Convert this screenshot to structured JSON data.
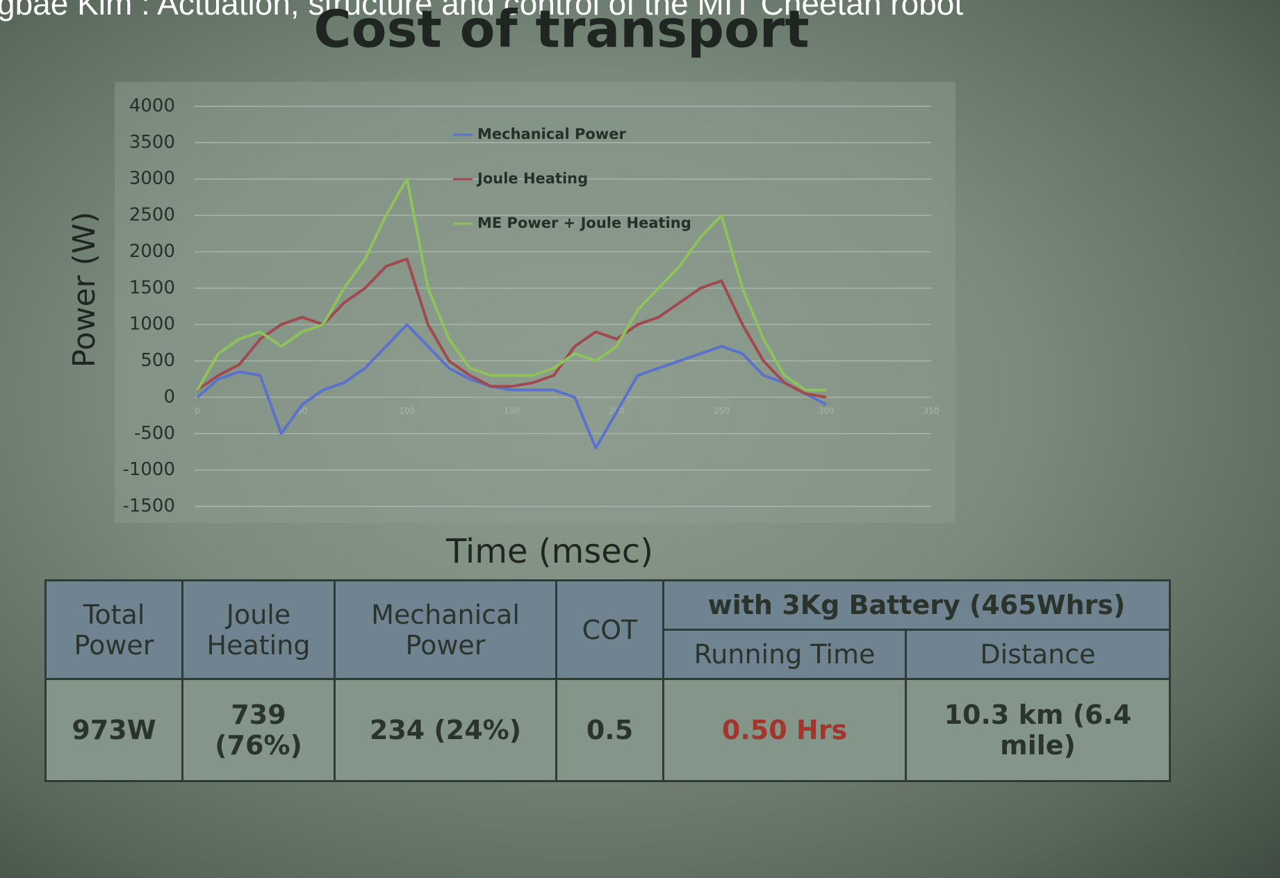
{
  "video_title": "gbae Kim : Actuation, structure and control of the MIT Cheetah robot",
  "chart_data": {
    "type": "line",
    "title": "Cost of transport",
    "x_label": "Time (msec)",
    "y_label": "Power (W)",
    "x": [
      0,
      10,
      20,
      30,
      40,
      50,
      60,
      70,
      80,
      90,
      100,
      110,
      120,
      130,
      140,
      150,
      160,
      170,
      180,
      190,
      200,
      210,
      220,
      230,
      240,
      250,
      260,
      270,
      280,
      290,
      300
    ],
    "series": [
      {
        "name": "Mechanical Power",
        "color": "#5a72cc",
        "values": [
          0,
          250,
          350,
          300,
          -500,
          -100,
          100,
          200,
          400,
          700,
          1000,
          700,
          400,
          250,
          150,
          100,
          100,
          100,
          0,
          -700,
          -200,
          300,
          400,
          500,
          600,
          700,
          600,
          300,
          200,
          50,
          -100
        ]
      },
      {
        "name": "Joule Heating",
        "color": "#a04a50",
        "values": [
          100,
          300,
          450,
          800,
          1000,
          1100,
          1000,
          1300,
          1500,
          1800,
          1900,
          1000,
          500,
          300,
          150,
          150,
          200,
          300,
          700,
          900,
          800,
          1000,
          1100,
          1300,
          1500,
          1600,
          1000,
          500,
          200,
          50,
          0
        ]
      },
      {
        "name": "ME Power + Joule Heating",
        "color": "#8ec25a",
        "values": [
          100,
          600,
          800,
          900,
          700,
          900,
          1000,
          1500,
          1900,
          2500,
          3000,
          1500,
          800,
          400,
          300,
          300,
          300,
          400,
          600,
          500,
          700,
          1200,
          1500,
          1800,
          2200,
          2500,
          1500,
          800,
          300,
          100,
          100
        ]
      }
    ],
    "xlim": [
      0,
      350
    ],
    "xticks": [
      0,
      50,
      100,
      150,
      200,
      250,
      300,
      350
    ],
    "ylim": [
      -1500,
      4000
    ],
    "yticks": [
      -1500,
      -1000,
      -500,
      0,
      500,
      1000,
      1500,
      2000,
      2500,
      3000,
      3500,
      4000
    ],
    "grid": true
  },
  "table": {
    "header_row1": [
      "Total Power",
      "Joule Heating",
      "Mechanical Power",
      "COT",
      "with 3Kg Battery (465Whrs)"
    ],
    "header_row2": [
      "Running Time",
      "Distance"
    ],
    "rows": [
      [
        "973W",
        "739 (76%)",
        "234 (24%)",
        "0.5",
        "0.50 Hrs",
        "10.3 km (6.4 mile)"
      ]
    ]
  }
}
